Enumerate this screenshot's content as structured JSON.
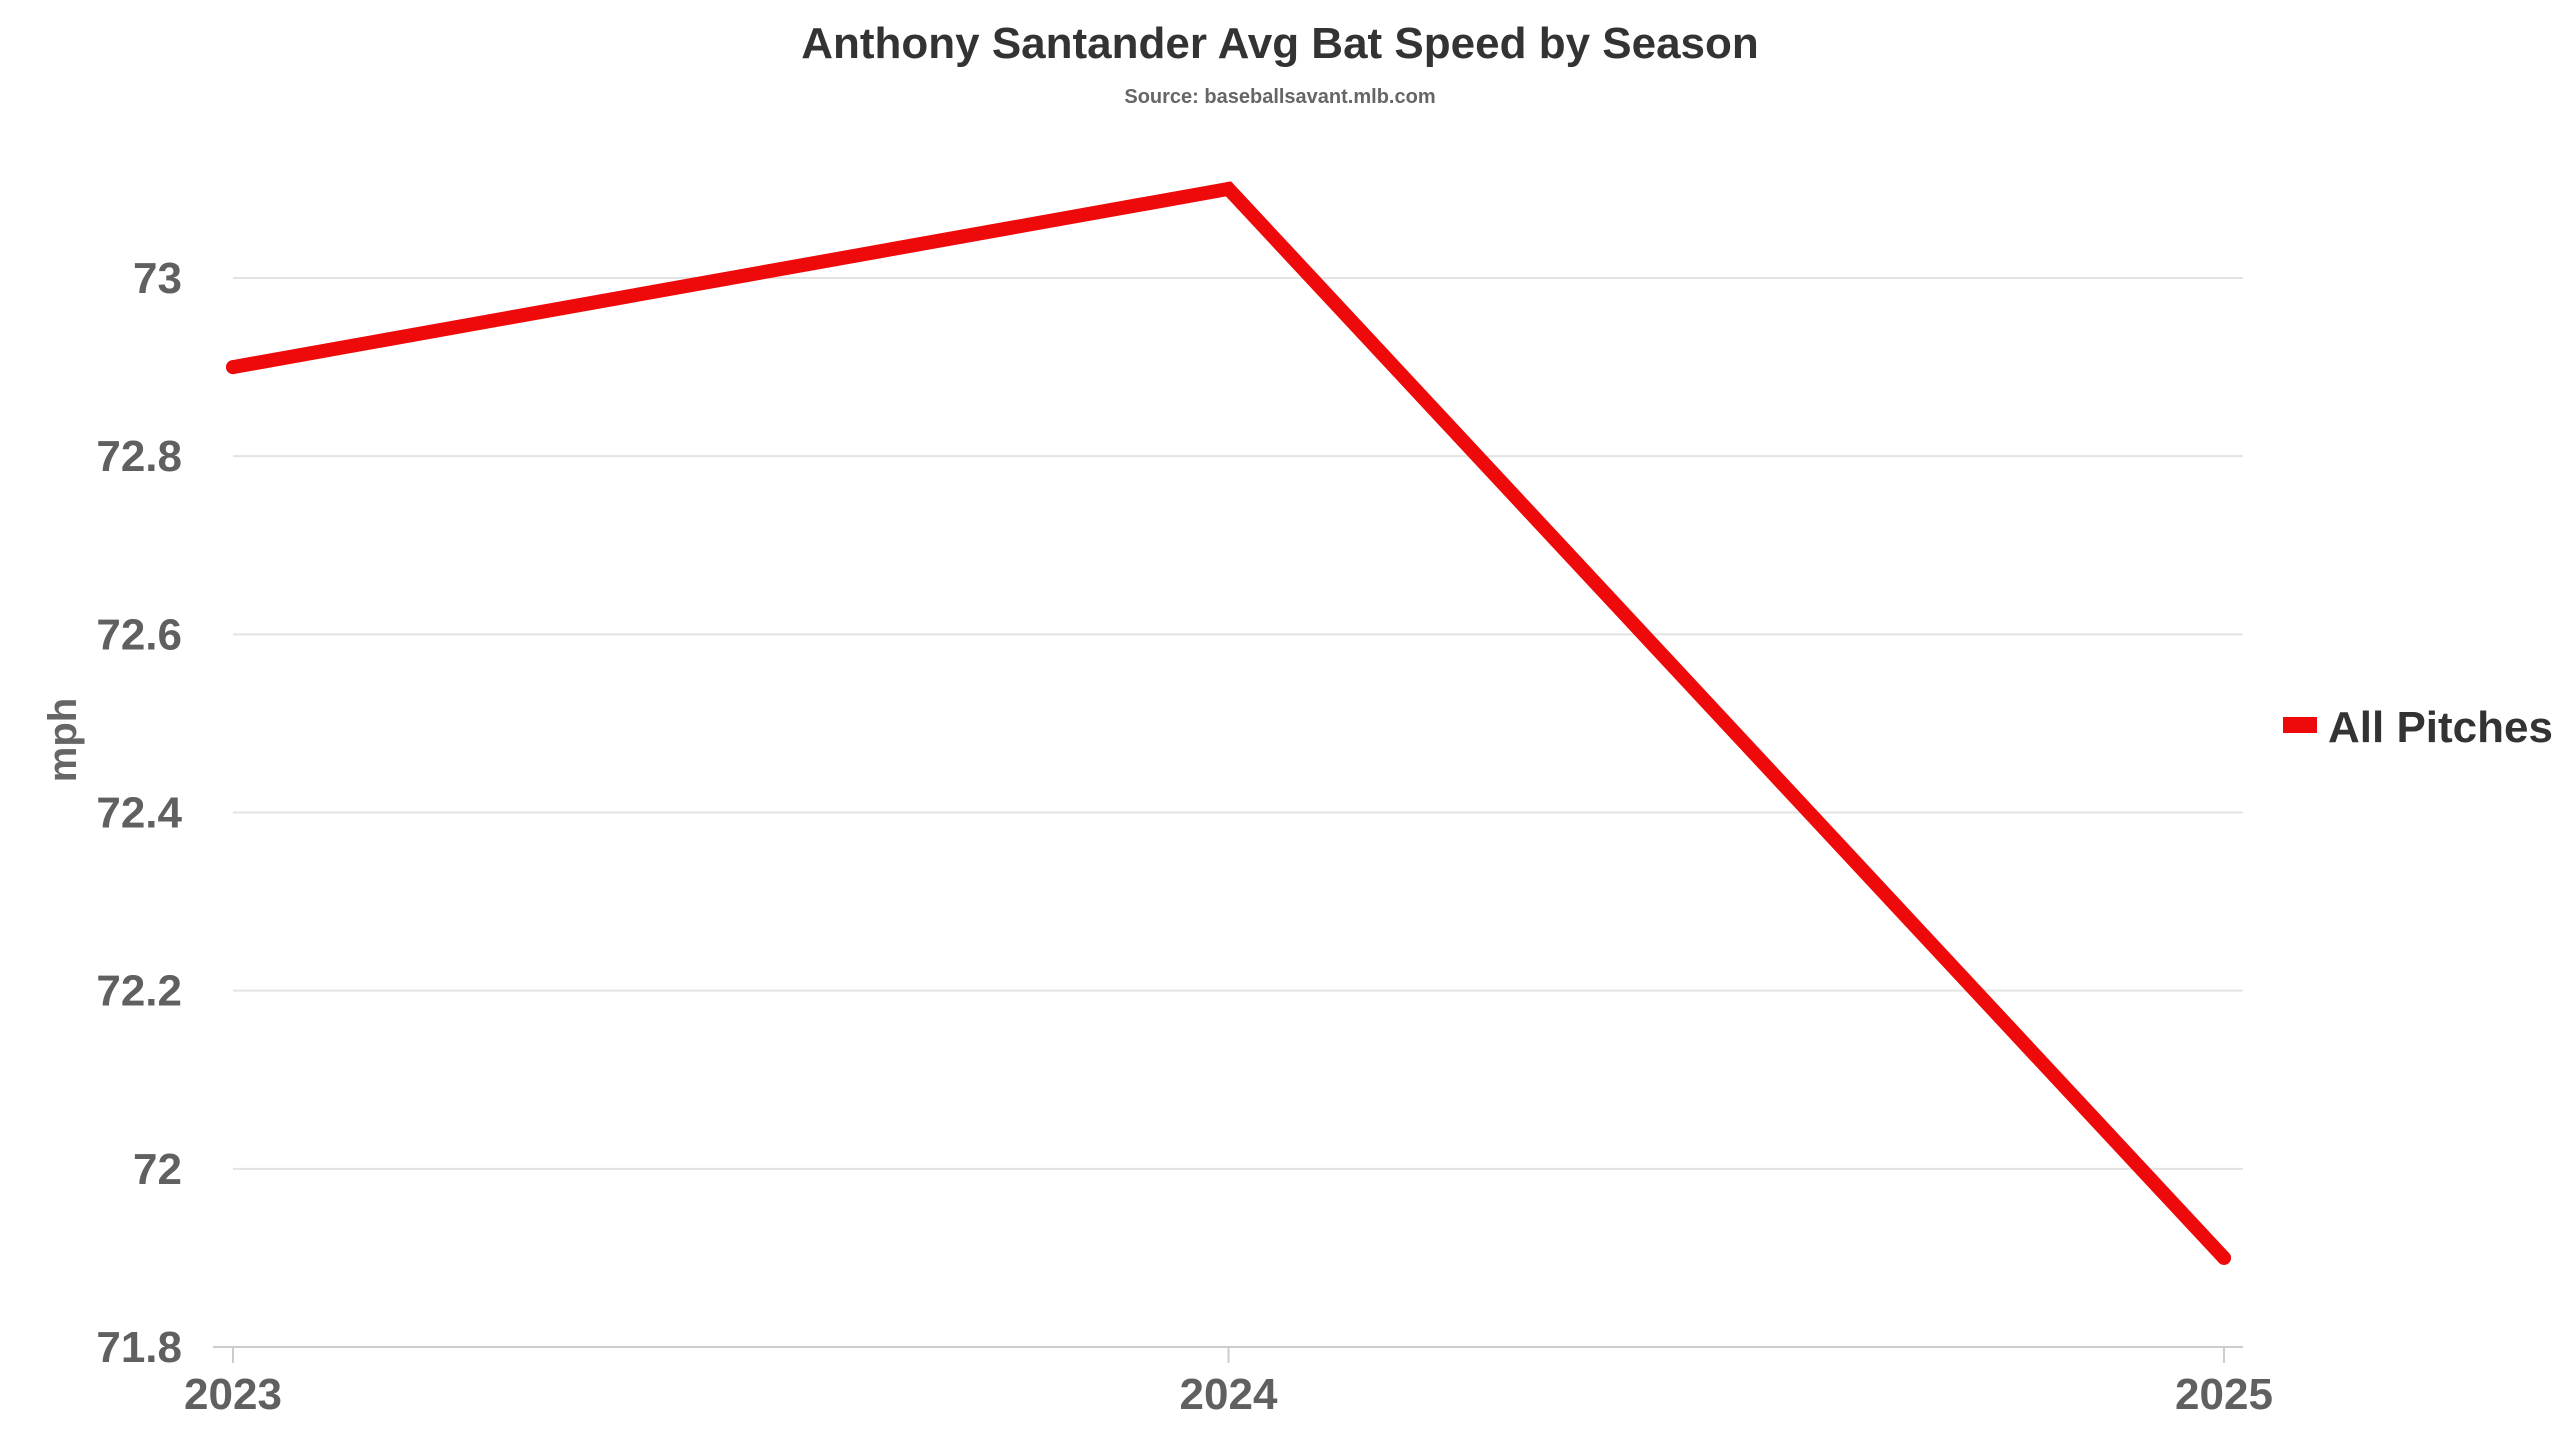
{
  "chart_data": {
    "type": "line",
    "title": "Anthony Santander Avg Bat Speed by Season",
    "subtitle": "Source: baseballsavant.mlb.com",
    "xlabel": "",
    "ylabel": "mph",
    "categories": [
      "2023",
      "2024",
      "2025"
    ],
    "series": [
      {
        "name": "All Pitches",
        "color": "#ee0a0a",
        "values": [
          72.9,
          73.1,
          71.9
        ]
      }
    ],
    "ylim": [
      71.8,
      73.2
    ],
    "yticks": [
      71.8,
      72,
      72.2,
      72.4,
      72.6,
      72.8,
      73
    ],
    "ytick_labels": [
      "71.8",
      "72",
      "72.2",
      "72.4",
      "72.6",
      "72.8",
      "73"
    ],
    "grid": true,
    "legend_position": "right"
  }
}
